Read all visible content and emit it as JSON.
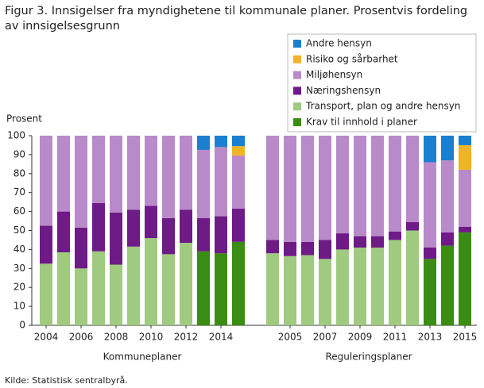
{
  "chart_data": [
    {
      "type": "bar",
      "stacked": true,
      "title": "Figur 3. Innsigelser fra myndighetene til kommunale planer. Prosentvis fordeling av innsigelsesgrunn",
      "ylabel": "Prosent",
      "xlabel": "Kommuneplaner",
      "categories": [
        "2004",
        null,
        "2006",
        null,
        "2008",
        null,
        "2010",
        null,
        "2012",
        null,
        "2014",
        null
      ],
      "ylim": [
        0,
        100
      ],
      "yticks": [
        0,
        10,
        20,
        30,
        40,
        50,
        60,
        70,
        80,
        90,
        100
      ],
      "series": [
        {
          "name": "Krav til innhold i planer",
          "color": "#3a8c12",
          "values": [
            0,
            0,
            0,
            0,
            0,
            0,
            0,
            0,
            0,
            39,
            38,
            44
          ]
        },
        {
          "name": "Transport, plan og andre hensyn",
          "color": "#9fca7f",
          "values": [
            32.5,
            38.5,
            30,
            39,
            32,
            41.5,
            46,
            37.5,
            43.5,
            0,
            0,
            0
          ]
        },
        {
          "name": "Næringshensyn",
          "color": "#6e1a87",
          "values": [
            20,
            21.5,
            21.5,
            25.5,
            27.5,
            19.5,
            17,
            19,
            17.5,
            17.5,
            19.5,
            17.5
          ]
        },
        {
          "name": "Miljøhensyn",
          "color": "#b98ac9",
          "values": [
            47.5,
            40,
            48.5,
            35.5,
            40.5,
            39,
            37,
            43.5,
            39,
            36,
            36.5,
            28
          ]
        },
        {
          "name": "Risiko og sårbarhet",
          "color": "#f0b428",
          "values": [
            0,
            0,
            0,
            0,
            0,
            0,
            0,
            0,
            0,
            0,
            0,
            5
          ]
        },
        {
          "name": "Andre hensyn",
          "color": "#1a7fd1",
          "values": [
            0,
            0,
            0,
            0,
            0,
            0,
            0,
            0,
            0,
            7.5,
            6,
            5.5
          ]
        }
      ]
    },
    {
      "type": "bar",
      "stacked": true,
      "xlabel": "Reguleringsplaner",
      "categories": [
        null,
        "2005",
        null,
        "2007",
        null,
        "2009",
        null,
        "2011",
        null,
        "2013",
        null,
        "2015"
      ],
      "ylim": [
        0,
        100
      ],
      "series": [
        {
          "name": "Krav til innhold i planer",
          "color": "#3a8c12",
          "values": [
            0,
            0,
            0,
            0,
            0,
            0,
            0,
            0,
            0,
            35,
            42,
            49
          ]
        },
        {
          "name": "Transport, plan og andre hensyn",
          "color": "#9fca7f",
          "values": [
            38,
            36.5,
            37,
            35,
            40,
            41,
            41,
            45,
            50,
            0,
            0,
            0
          ]
        },
        {
          "name": "Næringshensyn",
          "color": "#6e1a87",
          "values": [
            7,
            7.5,
            7,
            10,
            8.5,
            6,
            6,
            4.5,
            4.5,
            6,
            7,
            3
          ]
        },
        {
          "name": "Miljøhensyn",
          "color": "#b98ac9",
          "values": [
            55,
            56,
            56,
            55,
            51.5,
            53,
            53,
            50.5,
            45.5,
            45,
            38,
            30
          ]
        },
        {
          "name": "Risiko og sårbarhet",
          "color": "#f0b428",
          "values": [
            0,
            0,
            0,
            0,
            0,
            0,
            0,
            0,
            0,
            0,
            0,
            13
          ]
        },
        {
          "name": "Andre hensyn",
          "color": "#1a7fd1",
          "values": [
            0,
            0,
            0,
            0,
            0,
            0,
            0,
            0,
            0,
            14,
            13,
            5
          ]
        }
      ]
    }
  ],
  "footer": {
    "source": "Kilde: Statistisk sentralbyrå."
  }
}
